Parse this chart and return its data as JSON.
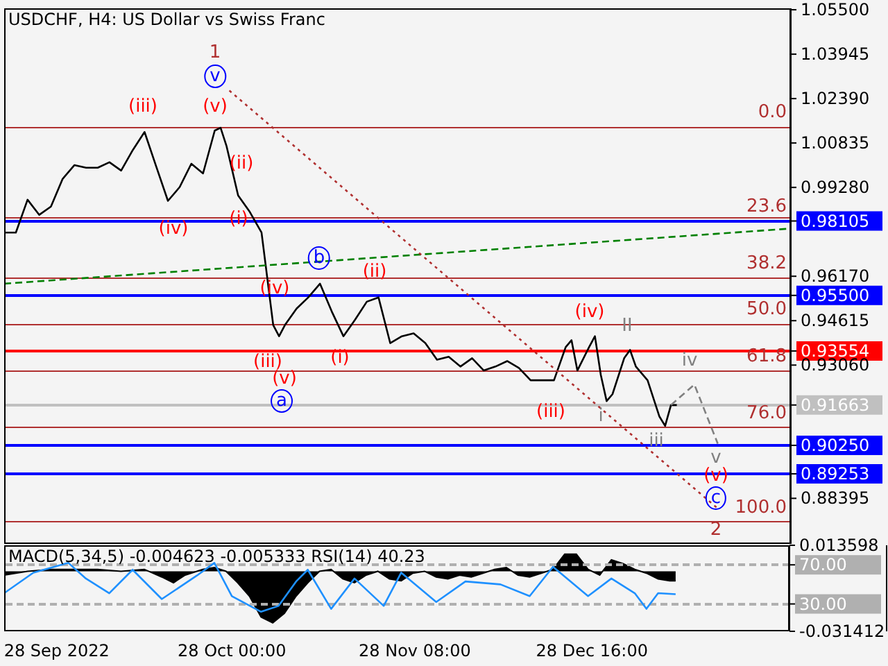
{
  "chart_data": [
    {
      "type": "line",
      "title": "USDCHF, H4:  US Dollar vs Swiss Franc",
      "x": [
        "2022-09-19",
        "2022-09-21",
        "2022-09-23",
        "2022-09-25",
        "2022-09-27",
        "2022-09-29",
        "2022-10-01",
        "2022-10-03",
        "2022-10-05",
        "2022-10-07",
        "2022-10-09",
        "2022-10-11",
        "2022-10-13",
        "2022-10-15",
        "2022-10-17",
        "2022-10-19",
        "2022-10-21",
        "2022-10-23",
        "2022-10-25",
        "2022-10-26",
        "2022-10-27",
        "2022-10-29",
        "2022-10-31",
        "2022-11-02",
        "2022-11-04",
        "2022-11-05",
        "2022-11-06",
        "2022-11-08",
        "2022-11-10",
        "2022-11-12",
        "2022-11-14",
        "2022-11-16",
        "2022-11-18",
        "2022-11-20",
        "2022-11-22",
        "2022-11-24",
        "2022-11-26",
        "2022-11-28",
        "2022-11-30",
        "2022-12-02",
        "2022-12-04",
        "2022-12-06",
        "2022-12-08",
        "2022-12-10",
        "2022-12-12",
        "2022-12-14",
        "2022-12-16",
        "2022-12-18",
        "2022-12-20",
        "2022-12-22",
        "2022-12-24",
        "2022-12-25",
        "2022-12-26",
        "2022-12-28",
        "2022-12-29",
        "2022-12-30",
        "2022-12-31",
        "2023-01-01",
        "2023-01-03",
        "2023-01-04",
        "2023-01-05",
        "2023-01-07",
        "2023-01-09",
        "2023-01-10",
        "2023-01-11",
        "2023-01-12"
      ],
      "xlim": [
        "2022-09-19",
        "2023-01-31T12:00"
      ],
      "tick_labels": "y",
      "ylim": [
        0.868,
        1.0555
      ],
      "yticks": [
        {
          "value": 1.055,
          "label": "1.05500"
        },
        1.03945,
        {
          "value": 1.0239,
          "label": "1.02390"
        },
        1.00835,
        {
          "value": 0.9928,
          "label": "0.99280"
        },
        0.98105,
        {
          "value": 0.9617,
          "label": "0.96170"
        },
        {
          "value": 0.955,
          "label": "0.95500"
        },
        0.94615,
        0.93554,
        {
          "value": 0.9306,
          "label": "0.93060"
        },
        0.91663,
        {
          "value": 0.9025,
          "label": "0.90250"
        },
        0.89253,
        0.88395
      ],
      "series": [
        {
          "color": "#000000",
          "values": [
            0.977,
            0.977,
            0.9885,
            0.9832,
            0.9861,
            0.9958,
            1.0006,
            0.9997,
            0.9997,
            1.0016,
            0.9987,
            1.0059,
            1.0122,
            1.0001,
            0.9881,
            0.9929,
            1.0011,
            0.9977,
            1.0127,
            1.0137,
            1.0074,
            0.99,
            0.9842,
            0.977,
            0.9446,
            0.9407,
            0.9446,
            0.9504,
            0.9543,
            0.9591,
            0.9494,
            0.9407,
            0.9465,
            0.9528,
            0.9543,
            0.9383,
            0.9407,
            0.9417,
            0.9383,
            0.9325,
            0.9335,
            0.9301,
            0.933,
            0.9287,
            0.9301,
            0.932,
            0.9296,
            0.9253,
            0.9253,
            0.9253,
            0.9369,
            0.9393,
            0.9287,
            0.9369,
            0.9407,
            0.9272,
            0.918,
            0.9204,
            0.933,
            0.9359,
            0.9301,
            0.9253,
            0.9127,
            0.9093,
            0.9166,
            0.9166
          ]
        },
        {
          "type": "line",
          "x": [
            "2022-09-19",
            "2023-01-31T12:00"
          ],
          "values": [
            0.9591,
            0.9784
          ],
          "color": "#008000",
          "line_style": "dashed"
        },
        {
          "type": "line",
          "x": [
            "2022-10-27T12:00",
            "2023-01-19"
          ],
          "values": [
            1.0267,
            0.8804
          ],
          "color": "#b03030",
          "line_style": "dotted"
        },
        {
          "type": "line",
          "x": [
            "2023-01-11",
            "2023-01-15",
            "2023-01-19"
          ],
          "values": [
            0.9166,
            0.9238,
            0.9031
          ],
          "color": "#808080",
          "line_style": "dashed"
        }
      ],
      "ref_lines": [
        {
          "axis": "y",
          "value": 1.0137,
          "color": "#b03030"
        },
        {
          "axis": "y",
          "value": 0.9822,
          "color": "#b03030"
        },
        {
          "axis": "y",
          "value": 0.98105,
          "color": "#0000ff"
        },
        {
          "axis": "y",
          "value": 0.961,
          "color": "#b03030"
        },
        {
          "axis": "y",
          "value": 0.955,
          "color": "#0000ff"
        },
        {
          "axis": "y",
          "value": 0.9447,
          "color": "#b03030"
        },
        {
          "axis": "y",
          "value": 0.93554,
          "color": "#ff0000"
        },
        {
          "axis": "y",
          "value": 0.9284,
          "color": "#b03030"
        },
        {
          "axis": "y",
          "value": 0.91663,
          "color": "#c0c0c0"
        },
        {
          "axis": "y",
          "value": 0.9088,
          "color": "#b03030"
        },
        {
          "axis": "y",
          "value": 0.9025,
          "color": "#0000ff"
        },
        {
          "axis": "y",
          "value": 0.89253,
          "color": "#0000ff"
        },
        {
          "axis": "y",
          "value": 0.8757,
          "color": "#b03030"
        }
      ],
      "annotations": [
        "1",
        "v",
        "(iii)",
        "(v)",
        "(ii)",
        "(iv)",
        "(i)",
        "(iv)",
        "b",
        "(ii)",
        "(iii)",
        "(v)",
        "a",
        "(i)",
        "(iv)",
        "II",
        "iv",
        "(iii)",
        "i",
        "iii",
        "v",
        "(v)",
        "c",
        "2",
        "0.0",
        "23.6",
        "38.2",
        "50.0",
        "61.8",
        "76.0",
        "100.0"
      ]
    },
    {
      "type": "area",
      "title": "MACD(5,34,5) -0.004623 -0.005333 RSI(14) 40.23",
      "x": [
        "2022-09-19",
        "2022-09-23",
        "2022-09-27",
        "2022-10-01",
        "2022-10-05",
        "2022-10-09",
        "2022-10-13",
        "2022-10-16",
        "2022-10-18",
        "2022-10-20",
        "2022-10-23",
        "2022-10-25",
        "2022-10-27",
        "2022-10-29",
        "2022-10-31",
        "2022-11-02",
        "2022-11-04",
        "2022-11-06",
        "2022-11-08",
        "2022-11-10",
        "2022-11-12",
        "2022-11-14",
        "2022-11-16",
        "2022-11-18",
        "2022-11-20",
        "2022-11-22",
        "2022-11-24",
        "2022-11-26",
        "2022-11-28",
        "2022-11-30",
        "2022-12-02",
        "2022-12-04",
        "2022-12-06",
        "2022-12-08",
        "2022-12-10",
        "2022-12-12",
        "2022-12-14",
        "2022-12-16",
        "2022-12-18",
        "2022-12-20",
        "2022-12-22",
        "2022-12-24",
        "2022-12-26",
        "2022-12-28",
        "2022-12-30",
        "2023-01-01",
        "2023-01-03",
        "2023-01-05",
        "2023-01-07",
        "2023-01-09",
        "2023-01-11",
        "2023-01-12"
      ],
      "xlim": [
        "2022-09-19",
        "2023-01-31T12:00"
      ],
      "xticks": [
        {
          "value": "2022-09-28",
          "label": "28 Sep 2022"
        },
        {
          "value": "2022-10-28T00:00",
          "label": "28 Oct 00:00"
        },
        {
          "value": "2022-11-28T08:00",
          "label": "28 Nov 08:00"
        },
        {
          "value": "2022-12-28T16:00",
          "label": "28 Dec 16:00"
        }
      ],
      "ylim": [
        -0.031412,
        0.013598
      ],
      "yticks": [
        0.013598,
        -0.031412
      ],
      "y2lim": [
        2,
        90
      ],
      "y2ticks": [
        {
          "value": 70,
          "label": "70.00"
        },
        {
          "value": 30,
          "label": "30.00"
        }
      ],
      "series": [
        {
          "color": "#000000",
          "values": [
            -0.002,
            0,
            0.001,
            0.001,
            0.001,
            0,
            0.001,
            -0.003,
            -0.006,
            -0.002,
            0.001,
            0.002,
            0,
            -0.006,
            -0.013,
            -0.024,
            -0.027,
            -0.022,
            -0.013,
            -0.006,
            0,
            0.001,
            -0.004,
            -0.006,
            -0.002,
            0,
            -0.004,
            -0.005,
            -0.001,
            0,
            -0.003,
            -0.004,
            -0.002,
            -0.003,
            -0.001,
            0.001,
            0.002,
            -0.002,
            -0.003,
            -0.001,
            0.001,
            0.009,
            0.009,
            0.001,
            -0.002,
            0.006,
            0.004,
            0.001,
            -0.001,
            -0.004,
            -0.005,
            -0.005
          ]
        },
        {
          "type": "line",
          "axis": "y2",
          "color": "#1e90ff",
          "x": [
            "2022-09-19",
            "2022-09-24",
            "2022-09-30",
            "2022-10-03",
            "2022-10-07",
            "2022-10-11",
            "2022-10-16",
            "2022-10-22",
            "2022-10-25",
            "2022-10-28",
            "2022-11-02",
            "2022-11-05",
            "2022-11-08",
            "2022-11-10",
            "2022-11-14",
            "2022-11-18",
            "2022-11-23",
            "2022-11-26",
            "2022-12-02",
            "2022-12-07",
            "2022-12-13",
            "2022-12-18",
            "2022-12-22",
            "2022-12-28",
            "2023-01-01",
            "2023-01-05",
            "2023-01-07",
            "2023-01-09",
            "2023-01-12"
          ],
          "values": [
            41,
            62,
            72,
            56,
            41,
            65,
            35,
            59,
            72,
            38,
            22,
            28,
            53,
            65,
            25,
            56,
            28,
            62,
            32,
            53,
            50,
            38,
            68,
            38,
            56,
            41,
            25,
            41,
            40
          ]
        }
      ],
      "ref_lines": [
        {
          "axis": "y2",
          "value": 70,
          "color": "#b0b0b0",
          "line_style": "dashed"
        },
        {
          "axis": "y2",
          "value": 30,
          "color": "#b0b0b0",
          "line_style": "dashed"
        }
      ]
    }
  ]
}
